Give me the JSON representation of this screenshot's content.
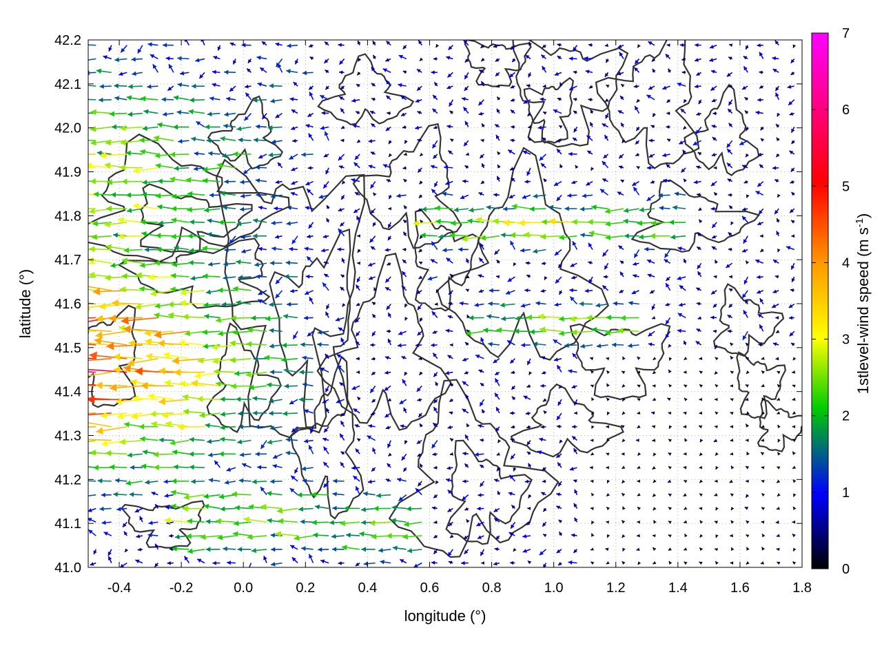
{
  "chart_data": {
    "type": "vector-field",
    "xlabel": "longitude (°)",
    "ylabel": "latitude (°)",
    "xlim": [
      -0.5,
      1.8
    ],
    "ylim": [
      41.0,
      42.2
    ],
    "xticks": [
      -0.4,
      -0.2,
      0.0,
      0.2,
      0.4,
      0.6,
      0.8,
      1.0,
      1.2,
      1.4,
      1.6,
      1.8
    ],
    "xtick_labels": [
      "-0.4",
      "-0.2",
      "0.0",
      "0.2",
      "0.4",
      "0.6",
      "0.8",
      "1.0",
      "1.2",
      "1.4",
      "1.6",
      "1.8"
    ],
    "yticks": [
      41.0,
      41.1,
      41.2,
      41.3,
      41.4,
      41.5,
      41.6,
      41.7,
      41.8,
      41.9,
      42.0,
      42.1,
      42.2
    ],
    "ytick_labels": [
      "41.0",
      "41.1",
      "41.2",
      "41.3",
      "41.4",
      "41.5",
      "41.6",
      "41.7",
      "41.8",
      "41.9",
      "42.0",
      "42.1",
      "42.2"
    ],
    "grid": true,
    "colorbar": {
      "label_main": "1stlevel-wind speed (m s",
      "label_exp": "-1",
      "label_close": ")",
      "range": [
        0,
        7
      ],
      "ticks": [
        "0",
        "1",
        "2",
        "3",
        "4",
        "5",
        "6",
        "7"
      ],
      "colormap": [
        "#000000",
        "#0000ff",
        "#00cc00",
        "#ffff00",
        "#ff9900",
        "#ff0000",
        "#ff00ff"
      ]
    },
    "grid_step": 0.05,
    "field_description": "Wind vectors at first model level; strongest westward flow (4-6 m/s) along the western edge near lat 41.3-41.6, weak mostly calm winds in the east; overlaid terrain contours."
  }
}
